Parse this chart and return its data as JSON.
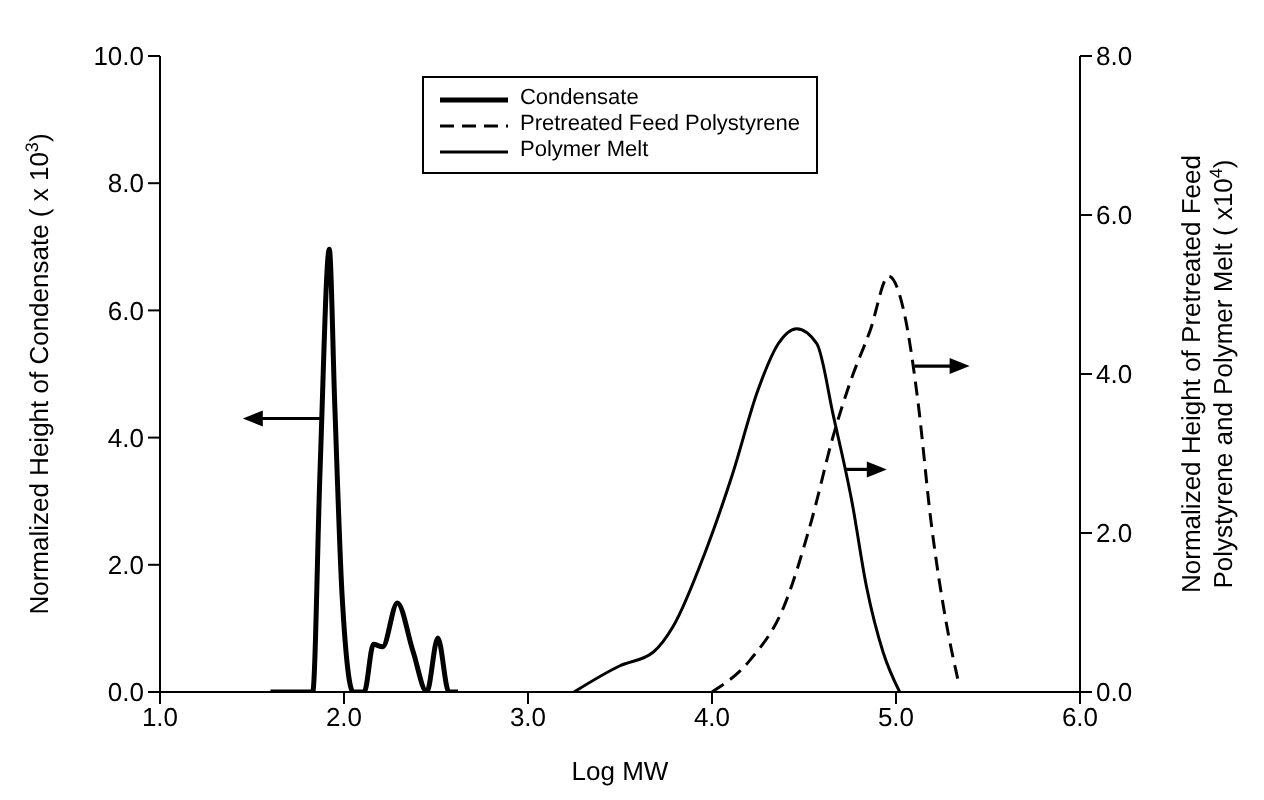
{
  "chart_data": {
    "type": "line",
    "xlabel": "Log MW",
    "ylabel": "Normalized Height of Condensate ( x 10$^{3}$)",
    "y2label": "Normalized Height of Pretreated Feed Polystyrene and Polymer Melt ( x10$^{4}$)",
    "xlim": [
      1,
      6
    ],
    "xticks": [
      {
        "value": 1,
        "label": "1.0"
      },
      {
        "value": 2,
        "label": "2.0"
      },
      {
        "value": 3,
        "label": "3.0"
      },
      {
        "value": 4,
        "label": "4.0"
      },
      {
        "value": 5,
        "label": "5.0"
      },
      {
        "value": 6,
        "label": "6.0"
      }
    ],
    "ylim": [
      0,
      10
    ],
    "yticks": [
      {
        "value": 0,
        "label": "0.0"
      },
      {
        "value": 2,
        "label": "2.0"
      },
      {
        "value": 4,
        "label": "4.0"
      },
      {
        "value": 6,
        "label": "6.0"
      },
      {
        "value": 8,
        "label": "8.0"
      },
      {
        "value": 10,
        "label": "10.0"
      }
    ],
    "y2lim": [
      0,
      8
    ],
    "y2ticks": [
      {
        "value": 0,
        "label": "0.0"
      },
      {
        "value": 2,
        "label": "2.0"
      },
      {
        "value": 4,
        "label": "4.0"
      },
      {
        "value": 6,
        "label": "6.0"
      },
      {
        "value": 8,
        "label": "8.0"
      }
    ],
    "legend": "top",
    "marker": "none",
    "series": [
      {
        "name": "Condensate",
        "color": "#000000",
        "line_style": "solid",
        "x": [
          1.6,
          1.83,
          1.87,
          1.92,
          1.95,
          1.99,
          2.05,
          2.11,
          2.16,
          2.21,
          2.29,
          2.375,
          2.45,
          2.51,
          2.57,
          2.62
        ],
        "values": [
          0,
          0,
          3.5,
          6.96,
          4.5,
          1.5,
          0,
          0,
          0.75,
          0.71,
          1.4,
          0.64,
          0,
          0.85,
          0,
          0
        ]
      },
      {
        "name": "Pretreated Feed Polystyrene",
        "color": "#000000",
        "line_style": "dashed",
        "axis": "y2",
        "x": [
          4.0,
          4.21,
          4.39,
          4.54,
          4.66,
          4.75,
          4.86,
          4.96,
          5.05,
          5.12,
          5.19,
          5.27,
          5.34
        ],
        "values": [
          0,
          0.41,
          1.07,
          2.15,
          3.23,
          3.89,
          4.55,
          5.23,
          4.71,
          3.64,
          2.15,
          0.91,
          0.12
        ]
      },
      {
        "name": "Polymer Melt",
        "color": "#000000",
        "line_style": "solid",
        "axis": "y2",
        "x": [
          3.25,
          3.5,
          3.68,
          3.79,
          3.96,
          4.11,
          4.25,
          4.36,
          4.46,
          4.57,
          4.66,
          4.76,
          4.84,
          4.93,
          5.02
        ],
        "values": [
          0,
          0.33,
          0.5,
          0.83,
          1.74,
          2.73,
          3.8,
          4.38,
          4.57,
          4.38,
          3.47,
          2.4,
          1.32,
          0.5,
          0
        ]
      }
    ]
  }
}
